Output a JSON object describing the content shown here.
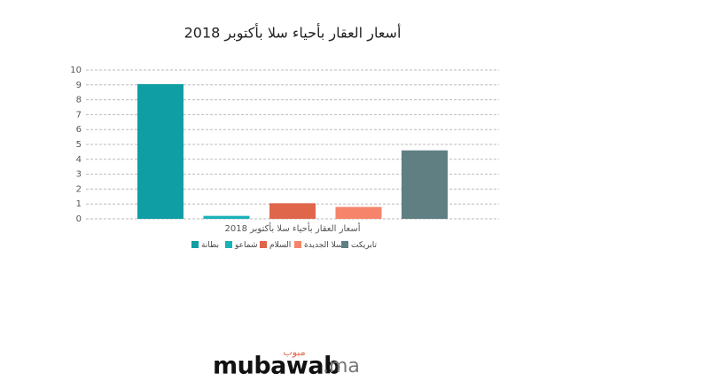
{
  "chart_data": {
    "type": "bar",
    "title": "أسعار العقار بأحياء سلا بأكتوبر 2018",
    "categories": [
      "أسعار العقار بأحياء سلا بأكتوبر 2018"
    ],
    "series": [
      {
        "name": "بطانة",
        "color": "#0f9ea4",
        "values": [
          9.05
        ]
      },
      {
        "name": "شماعو",
        "color": "#19b2b9",
        "values": [
          0.2
        ]
      },
      {
        "name": "السلام",
        "color": "#e0664b",
        "values": [
          1.05
        ]
      },
      {
        "name": "سلا الجديدة",
        "color": "#f6846a",
        "values": [
          0.8
        ]
      },
      {
        "name": "تابريكت",
        "color": "#5f7f83",
        "values": [
          4.6
        ]
      }
    ],
    "ylim": [
      0,
      10
    ],
    "yticks": [
      0,
      1,
      2,
      3,
      4,
      5,
      6,
      7,
      8,
      9,
      10
    ],
    "grid": true,
    "legend": "bottom"
  },
  "branding": {
    "logo": "mubawab",
    "suffix": ".ma",
    "arabic": "مبوب"
  }
}
